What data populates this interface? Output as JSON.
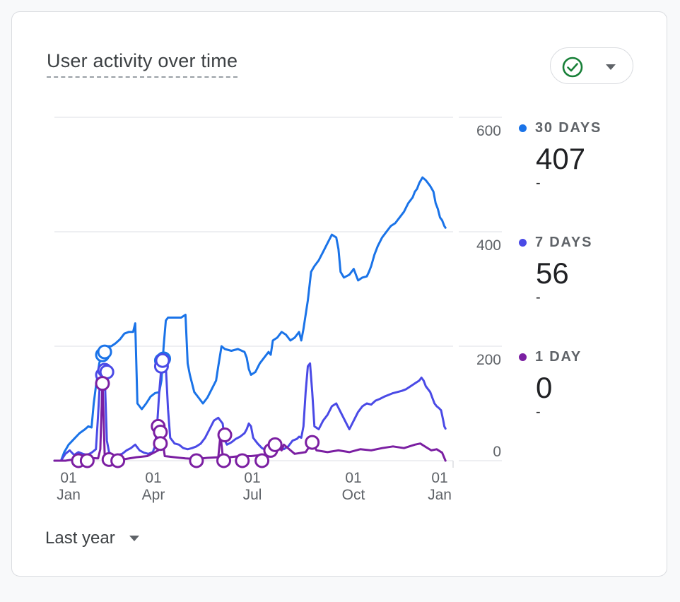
{
  "card": {
    "title": "User activity over time",
    "status_icon": "check-circle-icon",
    "dropdown_icon": "caret-down-icon"
  },
  "legend": [
    {
      "label": "30 DAYS",
      "value": "407",
      "change": "-",
      "color": "#1a73e8"
    },
    {
      "label": "7 DAYS",
      "value": "56",
      "change": "-",
      "color": "#4a4ae6"
    },
    {
      "label": "1 DAY",
      "value": "0",
      "change": "-",
      "color": "#7b1fa2"
    }
  ],
  "date_range": {
    "label": "Last year",
    "icon": "caret-down-icon"
  },
  "chart_data": {
    "type": "line",
    "ylim": [
      0,
      600
    ],
    "y_ticks": [
      "600",
      "400",
      "200",
      "0"
    ],
    "x_ticks": [
      {
        "day": "01",
        "month": "Jan"
      },
      {
        "day": "01",
        "month": "Apr"
      },
      {
        "day": "01",
        "month": "Jul"
      },
      {
        "day": "01",
        "month": "Oct"
      },
      {
        "day": "01",
        "month": "Jan"
      }
    ],
    "x_range_days": [
      0,
      365
    ],
    "grid": true,
    "series": [
      {
        "name": "30 DAYS",
        "color": "#1a73e8",
        "points": [
          [
            0,
            0
          ],
          [
            6,
            0
          ],
          [
            9,
            15
          ],
          [
            13,
            28
          ],
          [
            18,
            38
          ],
          [
            23,
            48
          ],
          [
            28,
            55
          ],
          [
            31,
            60
          ],
          [
            34,
            58
          ],
          [
            36,
            100
          ],
          [
            38,
            130
          ],
          [
            41,
            170
          ],
          [
            44,
            190
          ],
          [
            48,
            200
          ],
          [
            52,
            200
          ],
          [
            56,
            205
          ],
          [
            60,
            212
          ],
          [
            64,
            222
          ],
          [
            68,
            225
          ],
          [
            72,
            225
          ],
          [
            74,
            240
          ],
          [
            76,
            100
          ],
          [
            80,
            90
          ],
          [
            84,
            100
          ],
          [
            88,
            112
          ],
          [
            92,
            118
          ],
          [
            96,
            120
          ],
          [
            98,
            140
          ],
          [
            100,
            200
          ],
          [
            102,
            245
          ],
          [
            104,
            250
          ],
          [
            110,
            250
          ],
          [
            116,
            250
          ],
          [
            120,
            255
          ],
          [
            122,
            170
          ],
          [
            124,
            150
          ],
          [
            128,
            120
          ],
          [
            132,
            110
          ],
          [
            136,
            100
          ],
          [
            140,
            110
          ],
          [
            144,
            125
          ],
          [
            148,
            140
          ],
          [
            150,
            165
          ],
          [
            153,
            200
          ],
          [
            156,
            195
          ],
          [
            162,
            192
          ],
          [
            168,
            195
          ],
          [
            174,
            190
          ],
          [
            176,
            180
          ],
          [
            178,
            160
          ],
          [
            180,
            150
          ],
          [
            184,
            155
          ],
          [
            188,
            170
          ],
          [
            192,
            180
          ],
          [
            196,
            190
          ],
          [
            198,
            185
          ],
          [
            200,
            210
          ],
          [
            204,
            215
          ],
          [
            208,
            225
          ],
          [
            212,
            220
          ],
          [
            216,
            210
          ],
          [
            220,
            215
          ],
          [
            224,
            225
          ],
          [
            226,
            210
          ],
          [
            228,
            230
          ],
          [
            232,
            280
          ],
          [
            235,
            330
          ],
          [
            238,
            340
          ],
          [
            242,
            350
          ],
          [
            246,
            365
          ],
          [
            250,
            380
          ],
          [
            254,
            395
          ],
          [
            258,
            390
          ],
          [
            260,
            370
          ],
          [
            262,
            330
          ],
          [
            265,
            320
          ],
          [
            270,
            325
          ],
          [
            274,
            335
          ],
          [
            278,
            315
          ],
          [
            282,
            320
          ],
          [
            286,
            322
          ],
          [
            288,
            330
          ],
          [
            290,
            340
          ],
          [
            293,
            360
          ],
          [
            296,
            375
          ],
          [
            300,
            390
          ],
          [
            304,
            400
          ],
          [
            308,
            410
          ],
          [
            312,
            415
          ],
          [
            316,
            425
          ],
          [
            320,
            435
          ],
          [
            324,
            450
          ],
          [
            328,
            460
          ],
          [
            330,
            470
          ],
          [
            332,
            475
          ],
          [
            334,
            485
          ],
          [
            337,
            495
          ],
          [
            340,
            490
          ],
          [
            344,
            480
          ],
          [
            347,
            470
          ],
          [
            349,
            450
          ],
          [
            351,
            440
          ],
          [
            353,
            425
          ],
          [
            355,
            420
          ],
          [
            357,
            410
          ],
          [
            358,
            407
          ]
        ]
      },
      {
        "name": "7 DAYS",
        "color": "#4a4ae6",
        "points": [
          [
            0,
            0
          ],
          [
            6,
            0
          ],
          [
            10,
            12
          ],
          [
            14,
            18
          ],
          [
            18,
            10
          ],
          [
            22,
            15
          ],
          [
            26,
            12
          ],
          [
            30,
            10
          ],
          [
            34,
            14
          ],
          [
            38,
            20
          ],
          [
            40,
            80
          ],
          [
            42,
            150
          ],
          [
            44,
            160
          ],
          [
            46,
            152
          ],
          [
            48,
            35
          ],
          [
            50,
            15
          ],
          [
            54,
            8
          ],
          [
            58,
            10
          ],
          [
            62,
            12
          ],
          [
            66,
            18
          ],
          [
            70,
            22
          ],
          [
            74,
            28
          ],
          [
            78,
            18
          ],
          [
            82,
            14
          ],
          [
            86,
            12
          ],
          [
            90,
            15
          ],
          [
            92,
            25
          ],
          [
            94,
            60
          ],
          [
            96,
            120
          ],
          [
            98,
            165
          ],
          [
            100,
            178
          ],
          [
            102,
            165
          ],
          [
            104,
            90
          ],
          [
            106,
            40
          ],
          [
            110,
            30
          ],
          [
            114,
            28
          ],
          [
            118,
            22
          ],
          [
            122,
            20
          ],
          [
            126,
            22
          ],
          [
            130,
            25
          ],
          [
            134,
            30
          ],
          [
            138,
            40
          ],
          [
            142,
            55
          ],
          [
            146,
            70
          ],
          [
            150,
            75
          ],
          [
            154,
            65
          ],
          [
            156,
            35
          ],
          [
            158,
            28
          ],
          [
            162,
            32
          ],
          [
            166,
            38
          ],
          [
            170,
            42
          ],
          [
            174,
            48
          ],
          [
            176,
            55
          ],
          [
            178,
            65
          ],
          [
            180,
            60
          ],
          [
            182,
            40
          ],
          [
            186,
            30
          ],
          [
            190,
            22
          ],
          [
            194,
            18
          ],
          [
            198,
            20
          ],
          [
            202,
            25
          ],
          [
            206,
            28
          ],
          [
            210,
            20
          ],
          [
            214,
            25
          ],
          [
            218,
            35
          ],
          [
            222,
            38
          ],
          [
            224,
            42
          ],
          [
            226,
            40
          ],
          [
            228,
            60
          ],
          [
            230,
            120
          ],
          [
            232,
            165
          ],
          [
            234,
            170
          ],
          [
            236,
            120
          ],
          [
            238,
            60
          ],
          [
            242,
            55
          ],
          [
            246,
            70
          ],
          [
            250,
            80
          ],
          [
            254,
            95
          ],
          [
            258,
            100
          ],
          [
            262,
            85
          ],
          [
            266,
            70
          ],
          [
            270,
            55
          ],
          [
            274,
            70
          ],
          [
            278,
            85
          ],
          [
            282,
            95
          ],
          [
            286,
            100
          ],
          [
            290,
            98
          ],
          [
            294,
            105
          ],
          [
            298,
            108
          ],
          [
            302,
            112
          ],
          [
            306,
            115
          ],
          [
            310,
            118
          ],
          [
            314,
            120
          ],
          [
            318,
            122
          ],
          [
            322,
            125
          ],
          [
            326,
            130
          ],
          [
            330,
            135
          ],
          [
            334,
            140
          ],
          [
            336,
            145
          ],
          [
            338,
            140
          ],
          [
            340,
            130
          ],
          [
            344,
            120
          ],
          [
            346,
            110
          ],
          [
            348,
            100
          ],
          [
            350,
            95
          ],
          [
            352,
            92
          ],
          [
            354,
            88
          ],
          [
            356,
            70
          ],
          [
            357,
            60
          ],
          [
            358,
            56
          ]
        ]
      },
      {
        "name": "1 DAY",
        "color": "#7b1fa2",
        "points": [
          [
            0,
            0
          ],
          [
            10,
            0
          ],
          [
            20,
            3
          ],
          [
            30,
            5
          ],
          [
            40,
            4
          ],
          [
            42,
            20
          ],
          [
            44,
            140
          ],
          [
            46,
            10
          ],
          [
            48,
            3
          ],
          [
            55,
            4
          ],
          [
            65,
            3
          ],
          [
            75,
            6
          ],
          [
            85,
            8
          ],
          [
            95,
            18
          ],
          [
            97,
            60
          ],
          [
            99,
            35
          ],
          [
            101,
            8
          ],
          [
            110,
            6
          ],
          [
            120,
            4
          ],
          [
            130,
            3
          ],
          [
            140,
            5
          ],
          [
            150,
            6
          ],
          [
            152,
            45
          ],
          [
            154,
            10
          ],
          [
            160,
            6
          ],
          [
            170,
            8
          ],
          [
            180,
            8
          ],
          [
            190,
            10
          ],
          [
            200,
            10
          ],
          [
            206,
            22
          ],
          [
            208,
            18
          ],
          [
            210,
            28
          ],
          [
            220,
            12
          ],
          [
            230,
            15
          ],
          [
            236,
            32
          ],
          [
            240,
            18
          ],
          [
            250,
            15
          ],
          [
            260,
            18
          ],
          [
            270,
            15
          ],
          [
            280,
            20
          ],
          [
            290,
            18
          ],
          [
            300,
            22
          ],
          [
            310,
            25
          ],
          [
            320,
            22
          ],
          [
            330,
            28
          ],
          [
            335,
            30
          ],
          [
            340,
            24
          ],
          [
            345,
            18
          ],
          [
            350,
            20
          ],
          [
            355,
            14
          ],
          [
            358,
            0
          ]
        ]
      }
    ],
    "markers": [
      {
        "series": "30 DAYS",
        "points": [
          [
            44,
            185
          ],
          [
            46,
            190
          ],
          [
            98,
            175
          ],
          [
            100,
            178
          ]
        ]
      },
      {
        "series": "7 DAYS",
        "points": [
          [
            44,
            150
          ],
          [
            46,
            158
          ],
          [
            48,
            155
          ],
          [
            98,
            165
          ],
          [
            99,
            175
          ]
        ]
      },
      {
        "series": "1 DAY",
        "points": [
          [
            44,
            135
          ],
          [
            22,
            0
          ],
          [
            30,
            0
          ],
          [
            50,
            2
          ],
          [
            58,
            0
          ],
          [
            95,
            60
          ],
          [
            97,
            50
          ],
          [
            97,
            30
          ],
          [
            130,
            0
          ],
          [
            155,
            0
          ],
          [
            156,
            45
          ],
          [
            172,
            0
          ],
          [
            190,
            0
          ],
          [
            198,
            18
          ],
          [
            202,
            28
          ],
          [
            236,
            32
          ]
        ]
      }
    ]
  }
}
